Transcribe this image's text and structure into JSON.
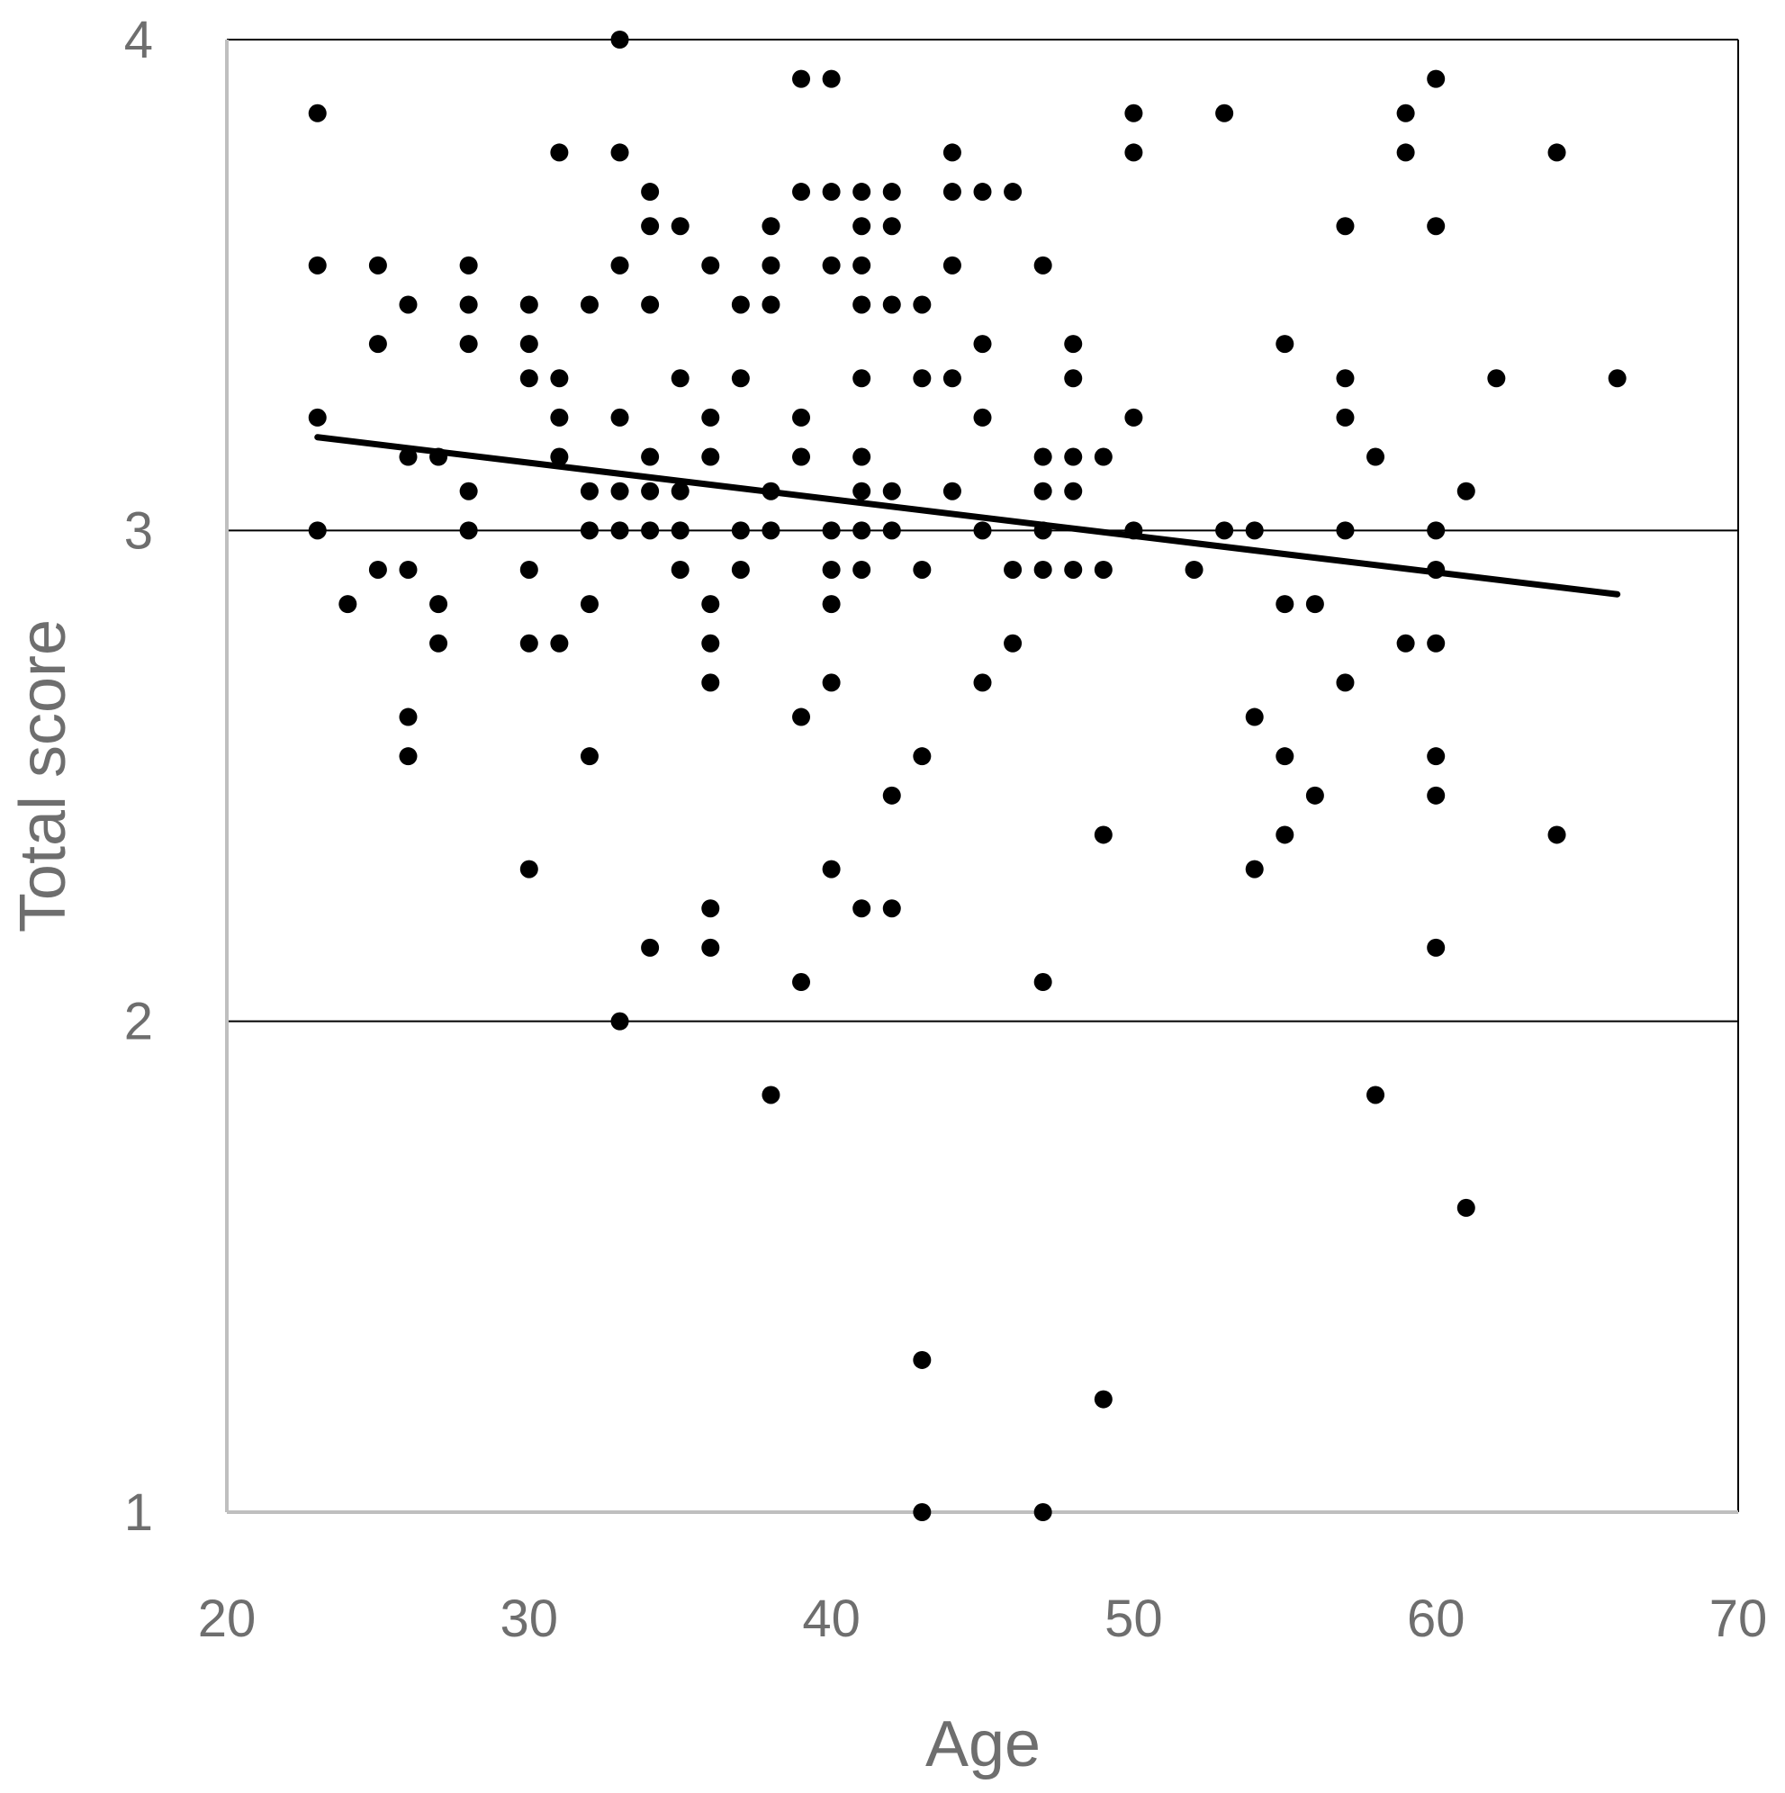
{
  "chart_data": {
    "type": "scatter",
    "xlabel": "Age",
    "ylabel": "Total score",
    "xlim": [
      20,
      70
    ],
    "ylim": [
      1,
      4
    ],
    "x_ticks": [
      "20",
      "30",
      "40",
      "50",
      "60",
      "70"
    ],
    "y_ticks": [
      "1",
      "2",
      "3",
      "4"
    ],
    "grid": "horizontal",
    "colors": {
      "points": "#000000",
      "trendline": "#000000",
      "labels": "#6e6e6e",
      "axis": "#bfbfbf",
      "grid": "#000000"
    },
    "series": [
      {
        "points": [
          [
            23,
            3.85
          ],
          [
            23,
            3.54
          ],
          [
            23,
            3.23
          ],
          [
            23,
            3.0
          ],
          [
            24,
            2.85
          ],
          [
            25,
            3.54
          ],
          [
            25,
            3.38
          ],
          [
            25,
            2.92
          ],
          [
            26,
            3.46
          ],
          [
            26,
            3.15
          ],
          [
            26,
            2.92
          ],
          [
            26,
            2.62
          ],
          [
            26,
            2.54
          ],
          [
            27,
            3.15
          ],
          [
            27,
            2.85
          ],
          [
            27,
            2.77
          ],
          [
            28,
            3.54
          ],
          [
            28,
            3.46
          ],
          [
            28,
            3.38
          ],
          [
            28,
            3.08
          ],
          [
            28,
            3.0
          ],
          [
            30,
            3.46
          ],
          [
            30,
            3.38
          ],
          [
            30,
            3.31
          ],
          [
            30,
            2.92
          ],
          [
            30,
            2.77
          ],
          [
            30,
            2.31
          ],
          [
            31,
            3.77
          ],
          [
            31,
            3.31
          ],
          [
            31,
            3.23
          ],
          [
            31,
            3.15
          ],
          [
            31,
            2.77
          ],
          [
            32,
            3.46
          ],
          [
            32,
            3.08
          ],
          [
            32,
            3.0
          ],
          [
            32,
            2.85
          ],
          [
            32,
            2.54
          ],
          [
            33,
            4.0
          ],
          [
            33,
            3.77
          ],
          [
            33,
            3.54
          ],
          [
            33,
            3.23
          ],
          [
            33,
            3.08
          ],
          [
            33,
            3.0
          ],
          [
            33,
            2.0
          ],
          [
            34,
            3.69
          ],
          [
            34,
            3.62
          ],
          [
            34,
            3.46
          ],
          [
            34,
            3.15
          ],
          [
            34,
            3.08
          ],
          [
            34,
            3.0
          ],
          [
            34,
            2.15
          ],
          [
            35,
            3.62
          ],
          [
            35,
            3.31
          ],
          [
            35,
            3.08
          ],
          [
            35,
            3.0
          ],
          [
            35,
            2.92
          ],
          [
            36,
            3.54
          ],
          [
            36,
            3.23
          ],
          [
            36,
            3.15
          ],
          [
            36,
            2.85
          ],
          [
            36,
            2.77
          ],
          [
            36,
            2.69
          ],
          [
            36,
            2.23
          ],
          [
            36,
            2.15
          ],
          [
            37,
            3.46
          ],
          [
            37,
            3.31
          ],
          [
            37,
            3.0
          ],
          [
            37,
            2.92
          ],
          [
            38,
            3.62
          ],
          [
            38,
            3.54
          ],
          [
            38,
            3.46
          ],
          [
            38,
            3.08
          ],
          [
            38,
            3.0
          ],
          [
            38,
            1.85
          ],
          [
            39,
            3.92
          ],
          [
            39,
            3.69
          ],
          [
            39,
            3.23
          ],
          [
            39,
            3.15
          ],
          [
            39,
            2.62
          ],
          [
            39,
            2.08
          ],
          [
            40,
            3.92
          ],
          [
            40,
            3.69
          ],
          [
            40,
            3.54
          ],
          [
            40,
            3.0
          ],
          [
            40,
            2.92
          ],
          [
            40,
            2.85
          ],
          [
            40,
            2.69
          ],
          [
            40,
            2.31
          ],
          [
            41,
            3.69
          ],
          [
            41,
            3.62
          ],
          [
            41,
            3.54
          ],
          [
            41,
            3.46
          ],
          [
            41,
            3.31
          ],
          [
            41,
            3.15
          ],
          [
            41,
            3.08
          ],
          [
            41,
            3.0
          ],
          [
            41,
            2.92
          ],
          [
            41,
            2.23
          ],
          [
            42,
            3.69
          ],
          [
            42,
            3.62
          ],
          [
            42,
            3.46
          ],
          [
            42,
            3.08
          ],
          [
            42,
            3.0
          ],
          [
            42,
            2.46
          ],
          [
            42,
            2.23
          ],
          [
            43,
            3.46
          ],
          [
            43,
            3.31
          ],
          [
            43,
            2.92
          ],
          [
            43,
            2.54
          ],
          [
            43,
            1.31
          ],
          [
            43,
            1.0
          ],
          [
            44,
            3.77
          ],
          [
            44,
            3.69
          ],
          [
            44,
            3.54
          ],
          [
            44,
            3.31
          ],
          [
            44,
            3.08
          ],
          [
            45,
            3.69
          ],
          [
            45,
            3.38
          ],
          [
            45,
            3.23
          ],
          [
            45,
            3.0
          ],
          [
            45,
            2.69
          ],
          [
            46,
            3.69
          ],
          [
            46,
            2.92
          ],
          [
            46,
            2.77
          ],
          [
            47,
            3.54
          ],
          [
            47,
            3.15
          ],
          [
            47,
            3.08
          ],
          [
            47,
            3.0
          ],
          [
            47,
            2.92
          ],
          [
            47,
            2.08
          ],
          [
            47,
            1.0
          ],
          [
            48,
            3.38
          ],
          [
            48,
            3.31
          ],
          [
            48,
            3.15
          ],
          [
            48,
            3.08
          ],
          [
            48,
            2.92
          ],
          [
            49,
            3.15
          ],
          [
            49,
            2.92
          ],
          [
            49,
            2.38
          ],
          [
            49,
            1.23
          ],
          [
            50,
            3.85
          ],
          [
            50,
            3.77
          ],
          [
            50,
            3.23
          ],
          [
            50,
            3.0
          ],
          [
            52,
            2.92
          ],
          [
            53,
            3.85
          ],
          [
            53,
            3.0
          ],
          [
            54,
            3.0
          ],
          [
            54,
            2.62
          ],
          [
            54,
            2.31
          ],
          [
            55,
            3.38
          ],
          [
            55,
            2.85
          ],
          [
            55,
            2.54
          ],
          [
            55,
            2.38
          ],
          [
            56,
            2.85
          ],
          [
            56,
            2.46
          ],
          [
            57,
            3.62
          ],
          [
            57,
            3.31
          ],
          [
            57,
            3.23
          ],
          [
            57,
            3.0
          ],
          [
            57,
            2.69
          ],
          [
            58,
            3.15
          ],
          [
            58,
            1.85
          ],
          [
            59,
            3.85
          ],
          [
            59,
            3.77
          ],
          [
            59,
            2.77
          ],
          [
            60,
            3.92
          ],
          [
            60,
            3.62
          ],
          [
            60,
            3.0
          ],
          [
            60,
            2.92
          ],
          [
            60,
            2.77
          ],
          [
            60,
            2.54
          ],
          [
            60,
            2.46
          ],
          [
            60,
            2.15
          ],
          [
            61,
            3.08
          ],
          [
            61,
            1.62
          ],
          [
            62,
            3.31
          ],
          [
            64,
            3.77
          ],
          [
            64,
            2.38
          ],
          [
            66,
            3.31
          ]
        ]
      }
    ],
    "trendline": {
      "x": [
        23,
        66
      ],
      "y": [
        3.19,
        2.87
      ]
    }
  }
}
